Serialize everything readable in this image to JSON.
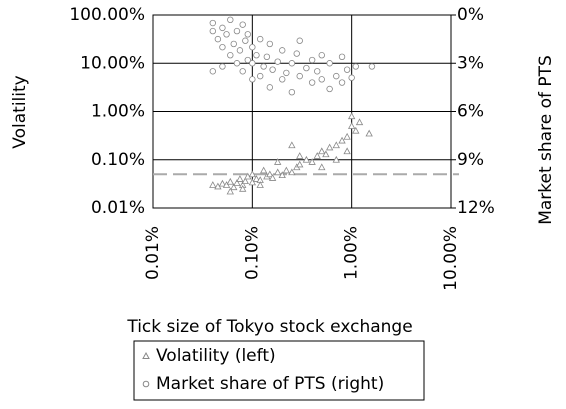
{
  "chart_data": {
    "type": "scatter",
    "xlabel": "Tick size of Tokyo stock exchange",
    "ylabel": "Volatility",
    "y2label": "Market share of PTS",
    "xscale": "log",
    "yscale": "log",
    "xlim": [
      0.01,
      10
    ],
    "xticks": [
      {
        "value": 0.01,
        "label": "0.01%"
      },
      {
        "value": 0.1,
        "label": "0.10%"
      },
      {
        "value": 1,
        "label": "1.00%"
      },
      {
        "value": 10,
        "label": "10.00%"
      }
    ],
    "ylim": [
      0.01,
      100
    ],
    "yticks": [
      {
        "value": 0.01,
        "label": "0.01%"
      },
      {
        "value": 0.1,
        "label": "0.10%"
      },
      {
        "value": 1,
        "label": "1.00%"
      },
      {
        "value": 10,
        "label": "10.00%"
      },
      {
        "value": 100,
        "label": "100.00%"
      }
    ],
    "y2lim": [
      12,
      0
    ],
    "y2ticks": [
      {
        "value": 0,
        "label": "0%"
      },
      {
        "value": 3,
        "label": "3%"
      },
      {
        "value": 6,
        "label": "6%"
      },
      {
        "value": 9,
        "label": "9%"
      },
      {
        "value": 12,
        "label": "12%"
      }
    ],
    "grid": true,
    "reference_line": {
      "y": 0.05,
      "color": "#aaaaaa"
    },
    "legend": "bottom",
    "series": [
      {
        "name": "Volatility (left)",
        "marker": "triangle",
        "color": "#888888",
        "x": [
          0.04,
          0.045,
          0.05,
          0.055,
          0.06,
          0.065,
          0.07,
          0.075,
          0.08,
          0.085,
          0.09,
          0.1,
          0.1,
          0.11,
          0.12,
          0.13,
          0.14,
          0.15,
          0.16,
          0.18,
          0.2,
          0.22,
          0.25,
          0.28,
          0.3,
          0.35,
          0.4,
          0.45,
          0.5,
          0.55,
          0.6,
          0.7,
          0.8,
          0.9,
          1.0,
          1.0,
          1.1,
          1.2,
          1.5,
          0.06,
          0.08,
          0.12,
          0.3,
          0.25,
          0.18,
          0.7,
          0.9,
          0.5
        ],
        "values": [
          0.03,
          0.028,
          0.032,
          0.03,
          0.035,
          0.027,
          0.033,
          0.04,
          0.03,
          0.036,
          0.045,
          0.034,
          0.05,
          0.04,
          0.038,
          0.06,
          0.045,
          0.05,
          0.042,
          0.055,
          0.048,
          0.06,
          0.055,
          0.07,
          0.08,
          0.1,
          0.09,
          0.12,
          0.15,
          0.13,
          0.18,
          0.2,
          0.25,
          0.3,
          0.5,
          0.8,
          0.4,
          0.6,
          0.35,
          0.022,
          0.025,
          0.03,
          0.12,
          0.2,
          0.09,
          0.1,
          0.15,
          0.07
        ]
      },
      {
        "name": "Market share of PTS (right)",
        "marker": "circle",
        "color": "#888888",
        "axis": "y2",
        "x": [
          0.04,
          0.04,
          0.045,
          0.05,
          0.05,
          0.055,
          0.06,
          0.06,
          0.065,
          0.07,
          0.07,
          0.075,
          0.08,
          0.08,
          0.085,
          0.09,
          0.1,
          0.1,
          0.1,
          0.11,
          0.12,
          0.12,
          0.13,
          0.14,
          0.15,
          0.15,
          0.16,
          0.18,
          0.2,
          0.2,
          0.22,
          0.25,
          0.25,
          0.28,
          0.3,
          0.3,
          0.35,
          0.4,
          0.4,
          0.45,
          0.5,
          0.5,
          0.6,
          0.6,
          0.7,
          0.8,
          0.8,
          0.9,
          1.0,
          1.1,
          1.6,
          0.04,
          0.05,
          0.09
        ],
        "values": [
          0.5,
          1,
          1.5,
          0.8,
          2,
          1.2,
          0.3,
          2.5,
          1.8,
          3,
          1,
          2.2,
          0.6,
          3.5,
          1.6,
          2.8,
          2,
          4,
          3,
          2.5,
          3.8,
          1.5,
          3.2,
          2.6,
          4.5,
          1.8,
          3.4,
          2.9,
          4,
          2.2,
          3.6,
          3,
          4.8,
          2.4,
          3.8,
          1.6,
          3.3,
          2.8,
          4.2,
          3.5,
          2.5,
          4,
          3,
          4.6,
          3.8,
          2.6,
          4.2,
          3.4,
          3.9,
          3.2,
          3.2,
          3.5,
          3.2,
          1.2
        ]
      }
    ]
  }
}
